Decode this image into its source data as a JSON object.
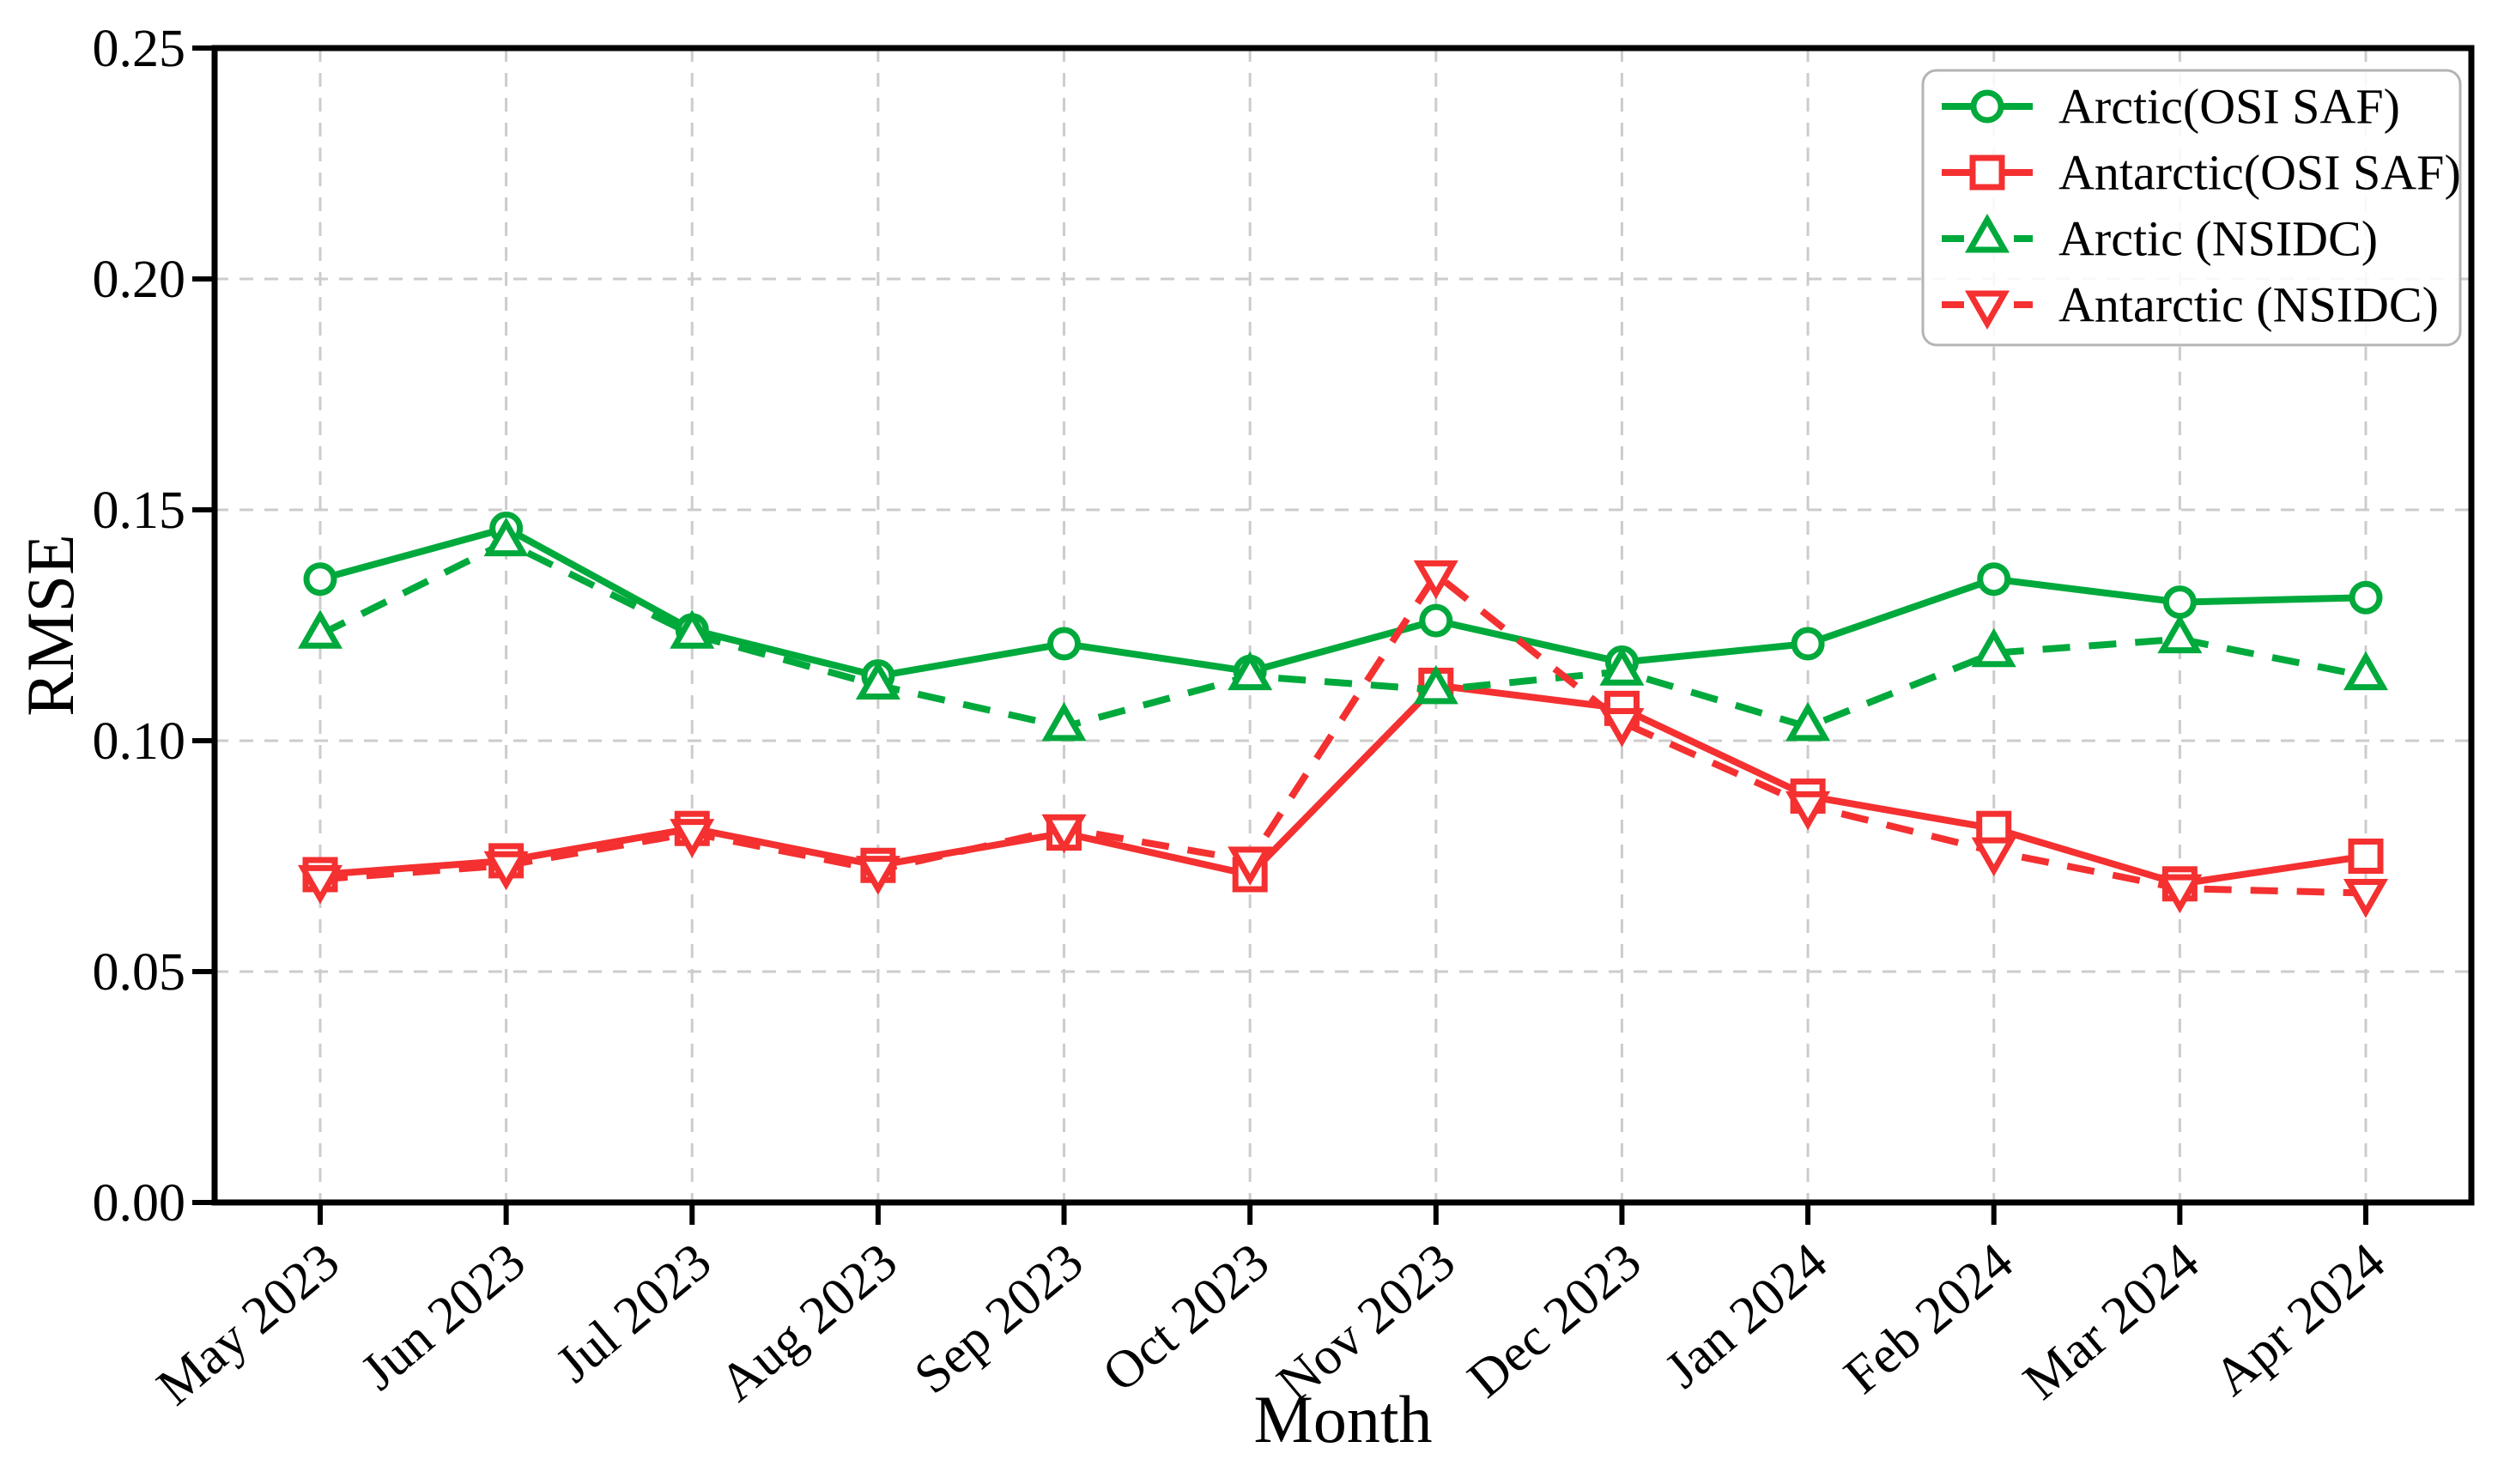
{
  "figure": {
    "background": "#ffffff",
    "description": "Monthly RMSE comparison line chart for Arctic and Antarctic sea-ice products"
  },
  "chart_data": {
    "type": "line",
    "title": "",
    "xlabel": "Month",
    "ylabel": "RMSE",
    "categories": [
      "May 2023",
      "Jun 2023",
      "Jul 2023",
      "Aug 2023",
      "Sep 2023",
      "Oct 2023",
      "Nov 2023",
      "Dec 2023",
      "Jan 2024",
      "Feb 2024",
      "Mar 2024",
      "Apr 2024"
    ],
    "ylim": [
      0.0,
      0.25
    ],
    "ytick_step": 0.05,
    "ytick_labels": [
      "0.00",
      "0.05",
      "0.10",
      "0.15",
      "0.20",
      "0.25"
    ],
    "grid": true,
    "grid_color": "#cccccc",
    "axis_color": "#000000",
    "xtick_label_rotation_deg": 40,
    "legend_position": "upper right",
    "legend_border_color": "#b4b4b4",
    "marker_fill": "#ffffff",
    "series": [
      {
        "name": "Arctic(OSI SAF)",
        "color": "#00A93C",
        "line": "solid",
        "marker": "circle",
        "values": [
          0.135,
          0.146,
          0.124,
          0.114,
          0.121,
          0.115,
          0.126,
          0.117,
          0.121,
          0.135,
          0.13,
          0.131
        ]
      },
      {
        "name": "Antarctic(OSI SAF)",
        "color": "#F43030",
        "line": "solid",
        "marker": "square",
        "values": [
          0.071,
          0.074,
          0.081,
          0.073,
          0.08,
          0.071,
          0.112,
          0.107,
          0.088,
          0.081,
          0.069,
          0.075
        ]
      },
      {
        "name": "Arctic (NSIDC)",
        "color": "#00A93C",
        "line": "dashed",
        "marker": "triangle-up",
        "values": [
          0.123,
          0.143,
          0.123,
          0.112,
          0.103,
          0.114,
          0.111,
          0.115,
          0.103,
          0.119,
          0.122,
          0.114
        ]
      },
      {
        "name": "Antarctic (NSIDC)",
        "color": "#F43030",
        "line": "dashed",
        "marker": "triangle-down",
        "values": [
          0.07,
          0.073,
          0.08,
          0.072,
          0.081,
          0.074,
          0.136,
          0.104,
          0.086,
          0.076,
          0.068,
          0.067
        ]
      }
    ]
  }
}
